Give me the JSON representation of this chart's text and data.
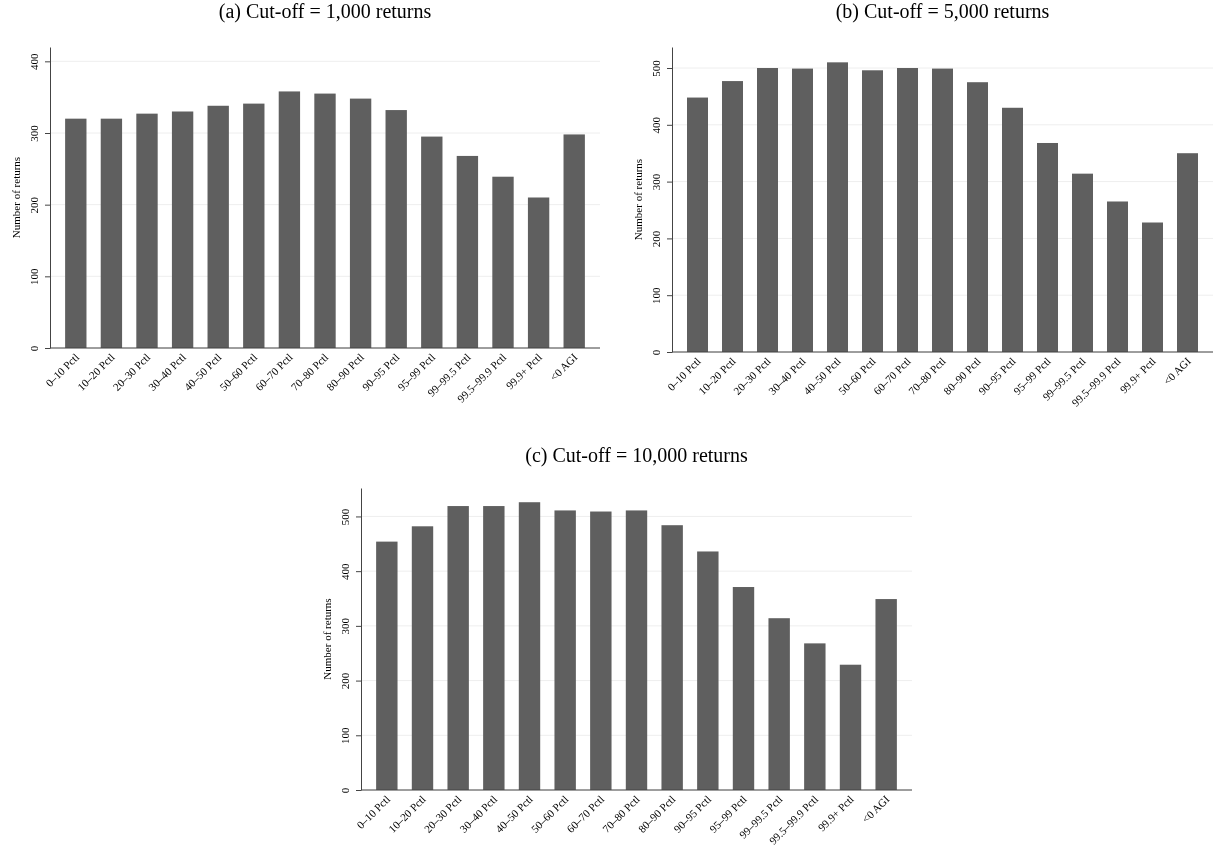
{
  "chart_data": [
    {
      "type": "bar",
      "title": "(a) Cut-off = 1,000 returns",
      "ylabel": "Number of returns",
      "categories": [
        "0–10 Pctl",
        "10–20 Pctl",
        "20–30 Pctl",
        "30–40 Pctl",
        "40–50 Pctl",
        "50–60 Pctl",
        "60–70 Pctl",
        "70–80 Pctl",
        "80–90 Pctl",
        "90–95 Pctl",
        "95–99 Pctl",
        "99–99.5 Pctl",
        "99.5–99.9 Pctl",
        "99.9+ Pctl",
        "<0 AGI"
      ],
      "values": [
        320,
        320,
        327,
        330,
        338,
        341,
        358,
        355,
        348,
        332,
        295,
        268,
        239,
        210,
        298
      ],
      "color": "#5f5f5f",
      "ylim": [
        0,
        420
      ],
      "yticks": [
        0,
        100,
        200,
        300,
        400
      ],
      "grid": "y"
    },
    {
      "type": "bar",
      "title": "(b) Cut-off = 5,000 returns",
      "ylabel": "Number of returns",
      "categories": [
        "0–10 Pctl",
        "10–20 Pctl",
        "20–30 Pctl",
        "30–40 Pctl",
        "40–50 Pctl",
        "50–60 Pctl",
        "60–70 Pctl",
        "70–80 Pctl",
        "80–90 Pctl",
        "90–95 Pctl",
        "95–99 Pctl",
        "99–99.5 Pctl",
        "99.5–99.9 Pctl",
        "99.9+ Pctl",
        "<0 AGI"
      ],
      "values": [
        448,
        477,
        500,
        499,
        510,
        496,
        500,
        499,
        475,
        430,
        368,
        314,
        265,
        228,
        350
      ],
      "color": "#5f5f5f",
      "ylim": [
        0,
        537
      ],
      "yticks": [
        0,
        100,
        200,
        300,
        400,
        500
      ],
      "grid": "y"
    },
    {
      "type": "bar",
      "title": "(c) Cut-off = 10,000 returns",
      "ylabel": "Number of returns",
      "categories": [
        "0–10 Pctl",
        "10–20 Pctl",
        "20–30 Pctl",
        "30–40 Pctl",
        "40–50 Pctl",
        "50–60 Pctl",
        "60–70 Pctl",
        "70–80 Pctl",
        "80–90 Pctl",
        "90–95 Pctl",
        "95–99 Pctl",
        "99–99.5 Pctl",
        "99.5–99.9 Pctl",
        "99.9+ Pctl",
        "<0 AGI"
      ],
      "values": [
        454,
        482,
        519,
        519,
        526,
        511,
        509,
        511,
        484,
        436,
        371,
        314,
        268,
        229,
        349
      ],
      "color": "#5f5f5f",
      "ylim": [
        0,
        552
      ],
      "yticks": [
        0,
        100,
        200,
        300,
        400,
        500
      ],
      "grid": "y"
    }
  ]
}
